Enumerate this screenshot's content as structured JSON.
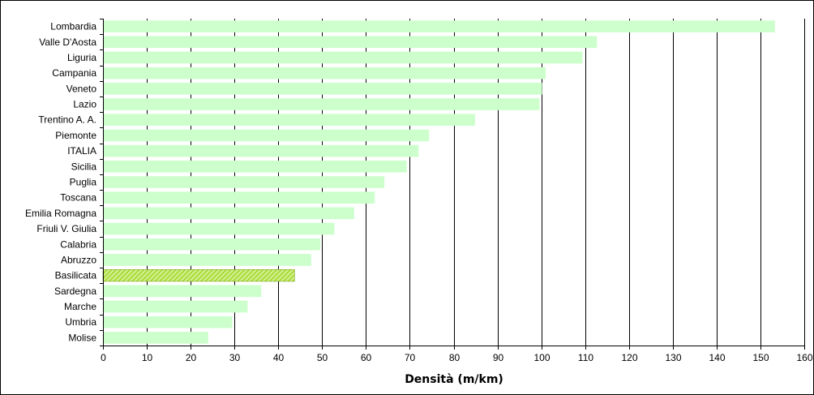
{
  "chart_data": {
    "type": "bar",
    "orientation": "horizontal",
    "categories": [
      "Lombardia",
      "Valle D'Aosta",
      "Liguria",
      "Campania",
      "Veneto",
      "Lazio",
      "Trentino A. A.",
      "Piemonte",
      "ITALIA",
      "Sicilia",
      "Puglia",
      "Toscana",
      "Emilia Romagna",
      "Friuli V. Giulia",
      "Calabria",
      "Abruzzo",
      "Basilicata",
      "Sardegna",
      "Marche",
      "Umbria",
      "Molise"
    ],
    "values": [
      153.3,
      112.7,
      109.4,
      101.0,
      100.2,
      99.6,
      84.9,
      74.4,
      72.0,
      69.3,
      64.2,
      62.0,
      57.3,
      52.8,
      49.6,
      47.5,
      43.7,
      36.1,
      33.0,
      29.5,
      24.0
    ],
    "highlight": "Basilicata",
    "xlabel": "Densità (m/km)",
    "ylabel": "",
    "title": "",
    "xlim": [
      0,
      160
    ],
    "xticks": [
      0,
      10,
      20,
      30,
      40,
      50,
      60,
      70,
      80,
      90,
      100,
      110,
      120,
      130,
      140,
      150,
      160
    ],
    "grid": "vertical",
    "legend": "none",
    "colors": {
      "bar": "#ccffcc",
      "highlight": "#99cc00",
      "grid": "#000000",
      "axis": "#000000",
      "frame": "#000000"
    }
  }
}
